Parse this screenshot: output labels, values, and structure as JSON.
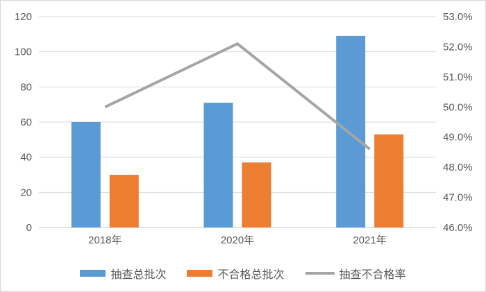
{
  "chart_data": {
    "type": "combo_bar_line",
    "title": "",
    "categories": [
      "2018年",
      "2020年",
      "2021年"
    ],
    "series": [
      {
        "name": "抽查总批次",
        "type": "bar",
        "axis": "left",
        "color": "#5B9BD5",
        "values": [
          60,
          71,
          109
        ]
      },
      {
        "name": "不合格总批次",
        "type": "bar",
        "axis": "left",
        "color": "#ED7D31",
        "values": [
          30,
          37,
          53
        ]
      },
      {
        "name": "抽查不合格率",
        "type": "line",
        "axis": "right",
        "color": "#A5A5A5",
        "values": [
          50.0,
          52.1,
          48.6
        ],
        "values_display": [
          "50.0%",
          "52.1%",
          "48.6%"
        ]
      }
    ],
    "left_axis": {
      "min": 0,
      "max": 120,
      "tick_labels": [
        "0",
        "20",
        "40",
        "60",
        "80",
        "100",
        "120"
      ]
    },
    "right_axis": {
      "min": 46,
      "max": 53,
      "tick_labels": [
        "46.0%",
        "47.0%",
        "48.0%",
        "49.0%",
        "50.0%",
        "51.0%",
        "52.0%",
        "53.0%"
      ]
    },
    "grid": true,
    "legend_position": "bottom"
  },
  "colors": {
    "background": "#FFFFFF",
    "border": "#D7D7D7",
    "gridline": "#D9D9D9",
    "axis_line": "#C9C9C9",
    "tick_text": "#595959"
  }
}
